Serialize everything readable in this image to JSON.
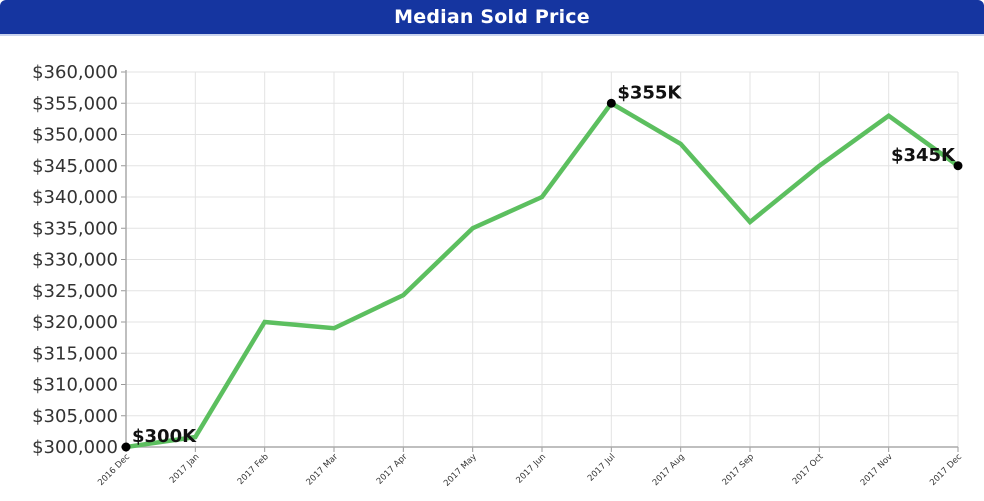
{
  "header": {
    "title": "Median Sold Price"
  },
  "colors": {
    "header": "#1535a0",
    "line": "#5cbf5f",
    "marker": "#000000",
    "grid": "#e3e3e3"
  },
  "chart_data": {
    "type": "line",
    "title": "Median Sold Price",
    "xlabel": "",
    "ylabel": "",
    "categories": [
      "2016 Dec",
      "2017 Jan",
      "2017 Feb",
      "2017 Mar",
      "2017 Apr",
      "2017 May",
      "2017 Jun",
      "2017 Jul",
      "2017 Aug",
      "2017 Sep",
      "2017 Oct",
      "2017 Nov",
      "2017 Dec"
    ],
    "series": [
      {
        "name": "Median Sold Price",
        "values": [
          300000,
          301600,
          320000,
          319000,
          324300,
          335000,
          340000,
          355000,
          348500,
          336000,
          345000,
          353000,
          345000
        ]
      }
    ],
    "ylim": [
      300000,
      360000
    ],
    "ytick_step": 5000,
    "yticks": [
      "$300,000",
      "$305,000",
      "$310,000",
      "$315,000",
      "$320,000",
      "$325,000",
      "$330,000",
      "$335,000",
      "$340,000",
      "$345,000",
      "$350,000",
      "$355,000",
      "$360,000"
    ],
    "grid": true,
    "legend": "none",
    "annotations": [
      {
        "index": 0,
        "text": "$300K"
      },
      {
        "index": 7,
        "text": "$355K"
      },
      {
        "index": 12,
        "text": "$345K"
      }
    ]
  }
}
